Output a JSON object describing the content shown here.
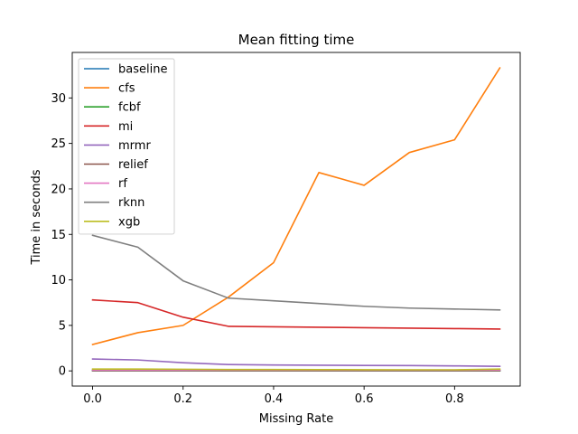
{
  "chart_data": {
    "type": "line",
    "title": "Mean fitting time",
    "xlabel": "Missing Rate",
    "ylabel": "Time in seconds",
    "x": [
      0.0,
      0.1,
      0.2,
      0.3,
      0.4,
      0.5,
      0.6,
      0.7,
      0.8,
      0.9
    ],
    "xlim": [
      -0.045,
      0.945
    ],
    "ylim": [
      -1.67,
      35.0
    ],
    "xticks": [
      0.0,
      0.2,
      0.4,
      0.6,
      0.8
    ],
    "xtick_labels": [
      "0.0",
      "0.2",
      "0.4",
      "0.6",
      "0.8"
    ],
    "yticks": [
      0,
      5,
      10,
      15,
      20,
      25,
      30
    ],
    "ytick_labels": [
      "0",
      "5",
      "10",
      "15",
      "20",
      "25",
      "30"
    ],
    "grid": false,
    "legend_position": "top-left",
    "series": [
      {
        "name": "baseline",
        "color": "#1f77b4",
        "values": [
          0.02,
          0.02,
          0.02,
          0.02,
          0.02,
          0.02,
          0.02,
          0.02,
          0.02,
          0.02
        ]
      },
      {
        "name": "cfs",
        "color": "#ff7f0e",
        "values": [
          2.9,
          4.2,
          5.0,
          8.1,
          11.9,
          21.8,
          20.4,
          24.0,
          25.4,
          33.3
        ]
      },
      {
        "name": "fcbf",
        "color": "#2ca02c",
        "values": [
          0.05,
          0.05,
          0.05,
          0.04,
          0.04,
          0.04,
          0.04,
          0.04,
          0.04,
          0.03
        ]
      },
      {
        "name": "mi",
        "color": "#d62728",
        "values": [
          7.8,
          7.5,
          5.9,
          4.9,
          4.85,
          4.8,
          4.75,
          4.7,
          4.65,
          4.6
        ]
      },
      {
        "name": "mrmr",
        "color": "#9467bd",
        "values": [
          1.3,
          1.2,
          0.9,
          0.7,
          0.65,
          0.62,
          0.6,
          0.58,
          0.55,
          0.5
        ]
      },
      {
        "name": "relief",
        "color": "#8c564b",
        "values": [
          0.03,
          0.03,
          0.03,
          0.03,
          0.03,
          0.03,
          0.03,
          0.03,
          0.03,
          0.03
        ]
      },
      {
        "name": "rf",
        "color": "#e377c2",
        "values": [
          0.1,
          0.1,
          0.1,
          0.1,
          0.1,
          0.1,
          0.1,
          0.1,
          0.1,
          0.1
        ]
      },
      {
        "name": "rknn",
        "color": "#7f7f7f",
        "values": [
          14.9,
          13.6,
          9.9,
          8.0,
          7.7,
          7.4,
          7.1,
          6.9,
          6.8,
          6.7
        ]
      },
      {
        "name": "xgb",
        "color": "#bcbd22",
        "values": [
          0.2,
          0.2,
          0.18,
          0.15,
          0.15,
          0.14,
          0.13,
          0.12,
          0.12,
          0.2
        ]
      }
    ]
  }
}
